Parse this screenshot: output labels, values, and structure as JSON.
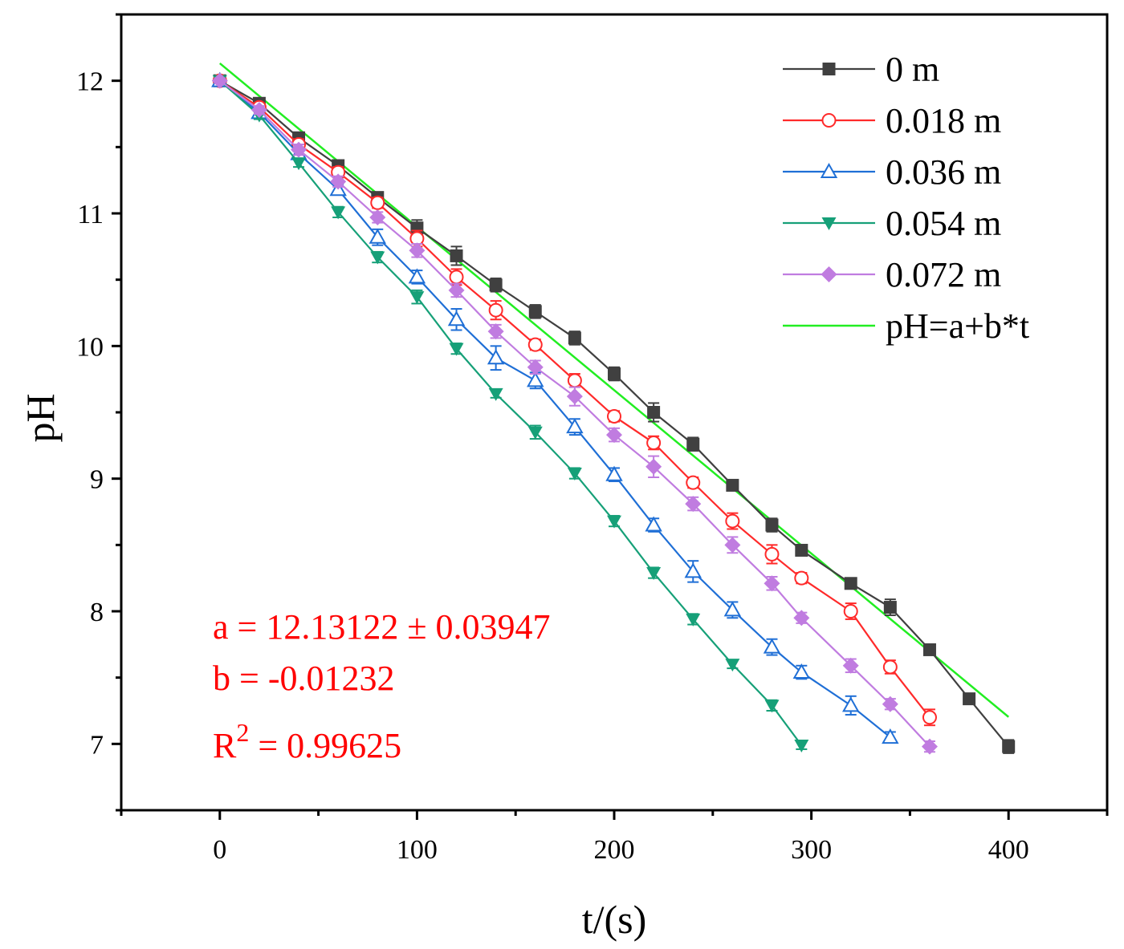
{
  "chart_data": {
    "type": "line",
    "title": "",
    "xlabel": "t/(s)",
    "ylabel": "pH",
    "xlim": [
      -50,
      450
    ],
    "ylim": [
      6.5,
      12.5
    ],
    "xticks": [
      0,
      100,
      200,
      300,
      400
    ],
    "xtick_labels": [
      "0",
      "100",
      "200",
      "300",
      "400"
    ],
    "yticks": [
      7,
      8,
      9,
      10,
      11,
      12
    ],
    "ytick_labels": [
      "7",
      "8",
      "9",
      "10",
      "11",
      "12"
    ],
    "grid": false,
    "legend_position": "top-right",
    "series": [
      {
        "name": "0 m",
        "color": "#404040",
        "marker": "square-filled",
        "x": [
          0,
          20,
          40,
          60,
          80,
          100,
          120,
          140,
          160,
          180,
          200,
          220,
          240,
          260,
          280,
          295,
          320,
          340,
          360,
          380,
          400
        ],
        "y": [
          12.0,
          11.83,
          11.57,
          11.36,
          11.12,
          10.89,
          10.68,
          10.46,
          10.26,
          10.06,
          9.79,
          9.5,
          9.26,
          8.95,
          8.65,
          8.46,
          8.21,
          8.03,
          7.71,
          7.34,
          6.98
        ],
        "err": [
          0.02,
          0.03,
          0.04,
          0.04,
          0.04,
          0.06,
          0.07,
          0.05,
          0.05,
          0.05,
          0.05,
          0.07,
          0.05,
          0.03,
          0.05,
          0.03,
          0.04,
          0.06,
          0.03,
          0.03,
          0.05
        ]
      },
      {
        "name": "0.018 m",
        "color": "#ff2a2a",
        "marker": "circle-open",
        "x": [
          0,
          20,
          40,
          60,
          80,
          100,
          120,
          140,
          160,
          180,
          200,
          220,
          240,
          260,
          280,
          295,
          320,
          340,
          360
        ],
        "y": [
          12.0,
          11.8,
          11.52,
          11.31,
          11.08,
          10.81,
          10.52,
          10.27,
          10.01,
          9.74,
          9.47,
          9.27,
          8.97,
          8.68,
          8.43,
          8.25,
          8.0,
          7.58,
          7.2
        ],
        "err": [
          0.02,
          0.03,
          0.04,
          0.04,
          0.04,
          0.06,
          0.06,
          0.07,
          0.04,
          0.05,
          0.04,
          0.05,
          0.04,
          0.06,
          0.07,
          0.04,
          0.06,
          0.05,
          0.06
        ]
      },
      {
        "name": "0.036 m",
        "color": "#1f6fd6",
        "marker": "triangle-open",
        "x": [
          0,
          20,
          40,
          60,
          80,
          100,
          120,
          140,
          160,
          180,
          200,
          220,
          240,
          260,
          280,
          295,
          320,
          340
        ],
        "y": [
          12.0,
          11.76,
          11.45,
          11.18,
          10.82,
          10.52,
          10.2,
          9.91,
          9.74,
          9.39,
          9.03,
          8.65,
          8.3,
          8.01,
          7.73,
          7.54,
          7.29,
          7.05
        ],
        "err": [
          0.02,
          0.03,
          0.04,
          0.04,
          0.06,
          0.05,
          0.08,
          0.09,
          0.06,
          0.06,
          0.05,
          0.05,
          0.08,
          0.06,
          0.06,
          0.05,
          0.07,
          0.04
        ]
      },
      {
        "name": "0.054 m",
        "color": "#16a078",
        "marker": "triangle-down-filled",
        "x": [
          0,
          20,
          40,
          60,
          80,
          100,
          120,
          140,
          160,
          180,
          200,
          220,
          240,
          260,
          280,
          295
        ],
        "y": [
          12.0,
          11.74,
          11.38,
          11.01,
          10.67,
          10.37,
          9.98,
          9.64,
          9.35,
          9.04,
          8.68,
          8.29,
          7.94,
          7.6,
          7.29,
          6.99
        ],
        "err": [
          0.02,
          0.03,
          0.03,
          0.04,
          0.04,
          0.05,
          0.04,
          0.03,
          0.05,
          0.04,
          0.04,
          0.04,
          0.04,
          0.03,
          0.04,
          0.03
        ]
      },
      {
        "name": "0.072 m",
        "color": "#c07ce0",
        "marker": "diamond-filled",
        "x": [
          0,
          20,
          40,
          60,
          80,
          100,
          120,
          140,
          160,
          180,
          200,
          220,
          240,
          260,
          280,
          295,
          320,
          340,
          360
        ],
        "y": [
          12.0,
          11.78,
          11.48,
          11.24,
          10.97,
          10.72,
          10.42,
          10.11,
          9.84,
          9.62,
          9.33,
          9.09,
          8.81,
          8.5,
          8.21,
          7.95,
          7.59,
          7.3,
          6.98
        ],
        "err": [
          0.02,
          0.03,
          0.04,
          0.04,
          0.04,
          0.05,
          0.05,
          0.05,
          0.05,
          0.07,
          0.05,
          0.08,
          0.05,
          0.06,
          0.05,
          0.04,
          0.05,
          0.04,
          0.04
        ]
      }
    ],
    "fit": {
      "name": "pH=a+b*t",
      "color": "#22ee22",
      "a": 12.13122,
      "b": -0.01232,
      "x_range": [
        0,
        400
      ]
    },
    "annotations": {
      "color": "#ff0000",
      "a_text": "a = 12.13122 ± 0.03947",
      "b_text": "b = -0.01232",
      "r2_prefix": "R",
      "r2_sup": "2",
      "r2_value": " = 0.99625"
    }
  }
}
